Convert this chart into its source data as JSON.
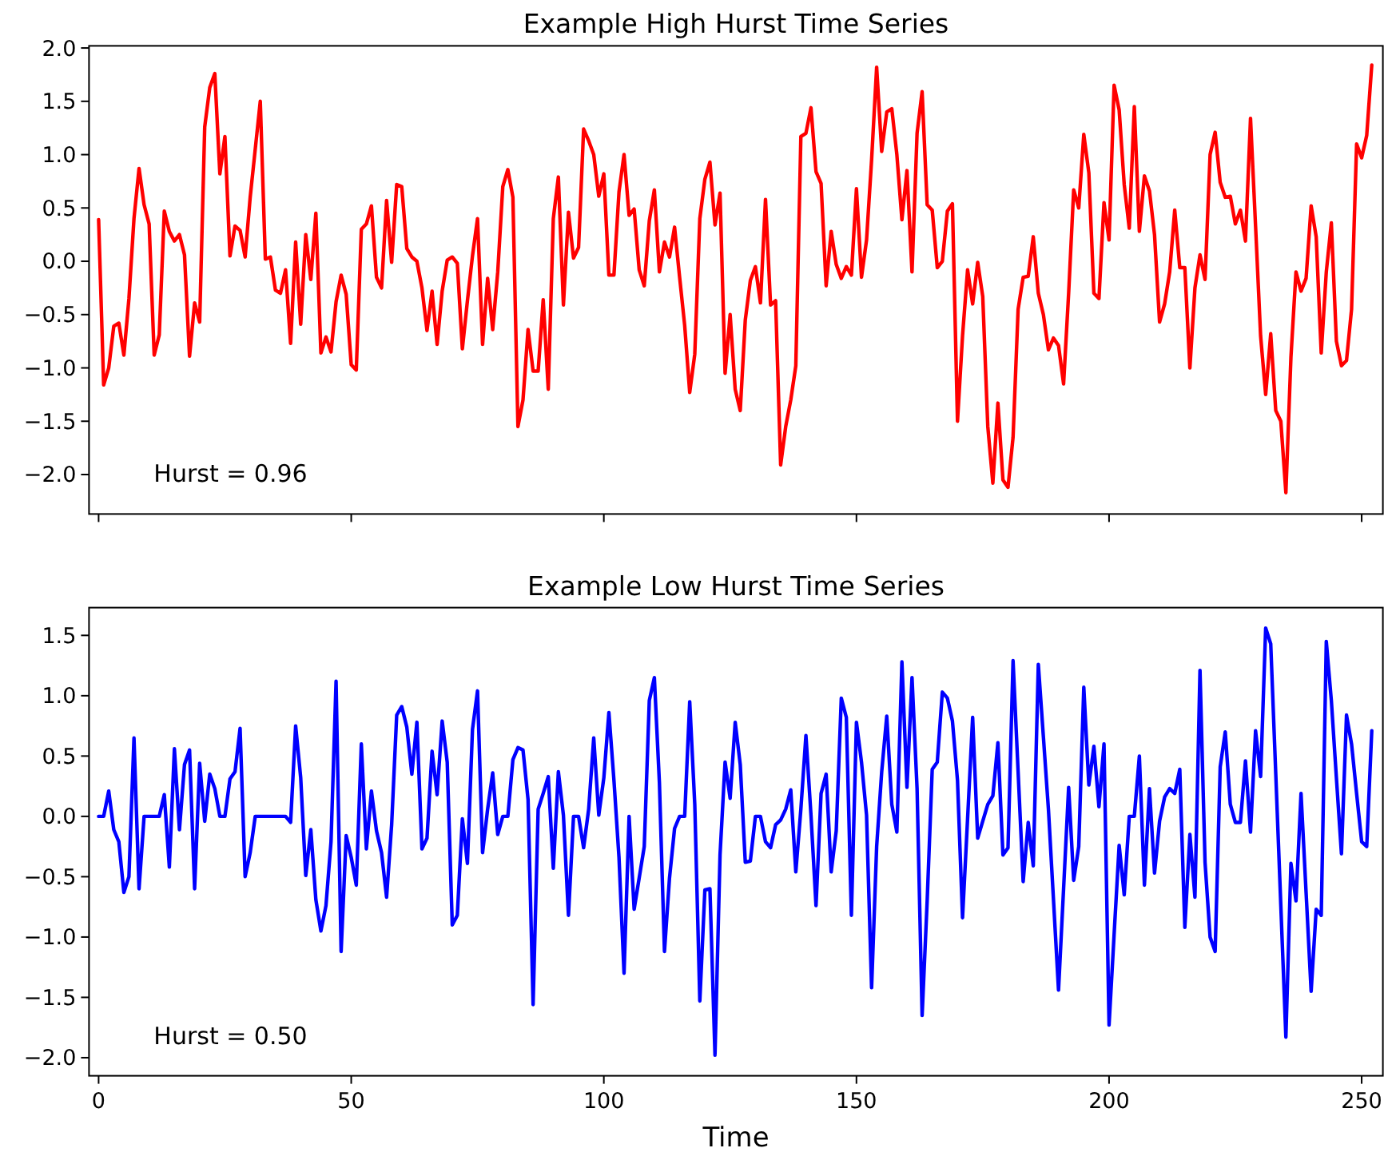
{
  "chart_data": [
    {
      "type": "line",
      "title": "Example High Hurst Time Series",
      "x": [
        0,
        1,
        2,
        3,
        4,
        5,
        6,
        7,
        8,
        9,
        10,
        11,
        12,
        13,
        14,
        15,
        16,
        17,
        18,
        19,
        20,
        21,
        22,
        23,
        24,
        25,
        26,
        27,
        28,
        29,
        30,
        31,
        32,
        33,
        34,
        35,
        36,
        37,
        38,
        39,
        40,
        41,
        42,
        43,
        44,
        45,
        46,
        47,
        48,
        49,
        50,
        51,
        52,
        53,
        54,
        55,
        56,
        57,
        58,
        59,
        60,
        61,
        62,
        63,
        64,
        65,
        66,
        67,
        68,
        69,
        70,
        71,
        72,
        73,
        74,
        75,
        76,
        77,
        78,
        79,
        80,
        81,
        82,
        83,
        84,
        85,
        86,
        87,
        88,
        89,
        90,
        91,
        92,
        93,
        94,
        95,
        96,
        97,
        98,
        99,
        100,
        101,
        102,
        103,
        104,
        105,
        106,
        107,
        108,
        109,
        110,
        111,
        112,
        113,
        114,
        115,
        116,
        117,
        118,
        119,
        120,
        121,
        122,
        123,
        124,
        125,
        126,
        127,
        128,
        129,
        130,
        131,
        132,
        133,
        134,
        135,
        136,
        137,
        138,
        139,
        140,
        141,
        142,
        143,
        144,
        145,
        146,
        147,
        148,
        149,
        150,
        151,
        152,
        153,
        154,
        155,
        156,
        157,
        158,
        159,
        160,
        161,
        162,
        163,
        164,
        165,
        166,
        167,
        168,
        169,
        170,
        171,
        172,
        173,
        174,
        175,
        176,
        177,
        178,
        179,
        180,
        181,
        182,
        183,
        184,
        185,
        186,
        187,
        188,
        189,
        190,
        191,
        192,
        193,
        194,
        195,
        196,
        197,
        198,
        199,
        200,
        201,
        202,
        203,
        204,
        205,
        206,
        207,
        208,
        209,
        210,
        211,
        212,
        213,
        214,
        215,
        216,
        217,
        218,
        219,
        220,
        221,
        222,
        223,
        224,
        225,
        226,
        227,
        228,
        229,
        230,
        231,
        232,
        233,
        234,
        235,
        236,
        237,
        238,
        239,
        240,
        241,
        242,
        243,
        244,
        245,
        246,
        247,
        248,
        249,
        250,
        251,
        252
      ],
      "series": [
        {
          "color": "#ff0000",
          "values": [
            0.39,
            -1.16,
            -1.0,
            -0.61,
            -0.58,
            -0.88,
            -0.35,
            0.4,
            0.87,
            0.53,
            0.35,
            -0.88,
            -0.69,
            0.47,
            0.28,
            0.19,
            0.25,
            0.06,
            -0.89,
            -0.39,
            -0.57,
            1.26,
            1.63,
            1.76,
            0.82,
            1.17,
            0.05,
            0.33,
            0.29,
            0.04,
            0.6,
            1.05,
            1.5,
            0.02,
            0.04,
            -0.27,
            -0.3,
            -0.08,
            -0.77,
            0.18,
            -0.59,
            0.25,
            -0.17,
            0.45,
            -0.86,
            -0.71,
            -0.85,
            -0.38,
            -0.13,
            -0.31,
            -0.97,
            -1.02,
            0.3,
            0.35,
            0.52,
            -0.15,
            -0.25,
            0.57,
            -0.01,
            0.72,
            0.7,
            0.12,
            0.04,
            0.0,
            -0.25,
            -0.65,
            -0.28,
            -0.78,
            -0.28,
            0.01,
            0.04,
            -0.02,
            -0.82,
            -0.37,
            0.05,
            0.4,
            -0.78,
            -0.16,
            -0.64,
            -0.1,
            0.7,
            0.86,
            0.6,
            -1.55,
            -1.3,
            -0.64,
            -1.03,
            -1.03,
            -0.36,
            -1.2,
            0.4,
            0.79,
            -0.41,
            0.46,
            0.03,
            0.13,
            1.24,
            1.13,
            1.0,
            0.61,
            0.82,
            -0.13,
            -0.13,
            0.65,
            1.0,
            0.43,
            0.49,
            -0.08,
            -0.23,
            0.38,
            0.67,
            -0.1,
            0.18,
            0.04,
            0.32,
            -0.15,
            -0.6,
            -1.23,
            -0.87,
            0.4,
            0.77,
            0.93,
            0.34,
            0.64,
            -1.05,
            -0.5,
            -1.2,
            -1.4,
            -0.55,
            -0.18,
            -0.05,
            -0.39,
            0.58,
            -0.41,
            -0.37,
            -1.91,
            -1.55,
            -1.3,
            -0.98,
            1.17,
            1.2,
            1.44,
            0.84,
            0.73,
            -0.23,
            0.28,
            -0.03,
            -0.16,
            -0.05,
            -0.13,
            0.68,
            -0.15,
            0.2,
            0.95,
            1.82,
            1.03,
            1.4,
            1.43,
            1.0,
            0.39,
            0.85,
            -0.1,
            1.2,
            1.59,
            0.53,
            0.48,
            -0.06,
            0.0,
            0.47,
            0.54,
            -1.5,
            -0.7,
            -0.08,
            -0.4,
            -0.01,
            -0.33,
            -1.55,
            -2.08,
            -1.33,
            -2.05,
            -2.12,
            -1.65,
            -0.45,
            -0.15,
            -0.14,
            0.23,
            -0.3,
            -0.5,
            -0.83,
            -0.72,
            -0.79,
            -1.15,
            -0.3,
            0.67,
            0.5,
            1.19,
            0.83,
            -0.3,
            -0.35,
            0.55,
            0.2,
            1.65,
            1.42,
            0.72,
            0.31,
            1.45,
            0.28,
            0.8,
            0.66,
            0.25,
            -0.57,
            -0.4,
            -0.1,
            0.48,
            -0.06,
            -0.06,
            -1.0,
            -0.25,
            0.06,
            -0.17,
            1.0,
            1.21,
            0.74,
            0.6,
            0.61,
            0.35,
            0.48,
            0.19,
            1.34,
            0.33,
            -0.7,
            -1.25,
            -0.68,
            -1.4,
            -1.5,
            -2.17,
            -0.9,
            -0.1,
            -0.28,
            -0.16,
            0.52,
            0.23,
            -0.86,
            -0.1,
            0.36,
            -0.75,
            -0.98,
            -0.93,
            -0.45,
            1.1,
            0.97,
            1.18,
            1.84
          ]
        }
      ],
      "xlim": [
        -1.9,
        254.2
      ],
      "xticks": [
        0,
        50,
        100,
        150,
        200,
        250
      ],
      "ylim": [
        -2.37,
        2.02
      ],
      "yticks": [
        {
          "value": -2.0,
          "label": "−2.0"
        },
        {
          "value": -1.5,
          "label": "−1.5"
        },
        {
          "value": -1.0,
          "label": "−1.0"
        },
        {
          "value": -0.5,
          "label": "−0.5"
        },
        {
          "value": 0,
          "label": "0.0"
        },
        {
          "value": 0.5,
          "label": "0.5"
        },
        {
          "value": 1.0,
          "label": "1.0"
        },
        {
          "value": 1.5,
          "label": "1.5"
        },
        {
          "value": 2.0,
          "label": "2.0"
        }
      ],
      "tick_labels": "y",
      "annotations": [
        "Hurst = 0.96"
      ]
    },
    {
      "type": "line",
      "title": "Example Low Hurst Time Series",
      "xlabel": "Time",
      "x": [
        0,
        1,
        2,
        3,
        4,
        5,
        6,
        7,
        8,
        9,
        10,
        11,
        12,
        13,
        14,
        15,
        16,
        17,
        18,
        19,
        20,
        21,
        22,
        23,
        24,
        25,
        26,
        27,
        28,
        29,
        30,
        31,
        32,
        33,
        34,
        35,
        36,
        37,
        38,
        39,
        40,
        41,
        42,
        43,
        44,
        45,
        46,
        47,
        48,
        49,
        50,
        51,
        52,
        53,
        54,
        55,
        56,
        57,
        58,
        59,
        60,
        61,
        62,
        63,
        64,
        65,
        66,
        67,
        68,
        69,
        70,
        71,
        72,
        73,
        74,
        75,
        76,
        77,
        78,
        79,
        80,
        81,
        82,
        83,
        84,
        85,
        86,
        87,
        88,
        89,
        90,
        91,
        92,
        93,
        94,
        95,
        96,
        97,
        98,
        99,
        100,
        101,
        102,
        103,
        104,
        105,
        106,
        107,
        108,
        109,
        110,
        111,
        112,
        113,
        114,
        115,
        116,
        117,
        118,
        119,
        120,
        121,
        122,
        123,
        124,
        125,
        126,
        127,
        128,
        129,
        130,
        131,
        132,
        133,
        134,
        135,
        136,
        137,
        138,
        139,
        140,
        141,
        142,
        143,
        144,
        145,
        146,
        147,
        148,
        149,
        150,
        151,
        152,
        153,
        154,
        155,
        156,
        157,
        158,
        159,
        160,
        161,
        162,
        163,
        164,
        165,
        166,
        167,
        168,
        169,
        170,
        171,
        172,
        173,
        174,
        175,
        176,
        177,
        178,
        179,
        180,
        181,
        182,
        183,
        184,
        185,
        186,
        187,
        188,
        189,
        190,
        191,
        192,
        193,
        194,
        195,
        196,
        197,
        198,
        199,
        200,
        201,
        202,
        203,
        204,
        205,
        206,
        207,
        208,
        209,
        210,
        211,
        212,
        213,
        214,
        215,
        216,
        217,
        218,
        219,
        220,
        221,
        222,
        223,
        224,
        225,
        226,
        227,
        228,
        229,
        230,
        231,
        232,
        233,
        234,
        235,
        236,
        237,
        238,
        239,
        240,
        241,
        242,
        243,
        244,
        245,
        246,
        247,
        248,
        249,
        250,
        251,
        252
      ],
      "series": [
        {
          "color": "#0000ff",
          "values": [
            0,
            0,
            0.21,
            -0.11,
            -0.21,
            -0.63,
            -0.5,
            0.65,
            -0.6,
            0,
            0,
            0,
            0,
            0.18,
            -0.42,
            0.56,
            -0.11,
            0.43,
            0.55,
            -0.6,
            0.44,
            -0.04,
            0.35,
            0.23,
            0,
            0,
            0.31,
            0.37,
            0.73,
            -0.5,
            -0.3,
            0,
            0,
            0,
            0,
            0,
            0,
            0,
            -0.05,
            0.75,
            0.32,
            -0.49,
            -0.11,
            -0.69,
            -0.95,
            -0.74,
            -0.21,
            1.12,
            -1.12,
            -0.16,
            -0.34,
            -0.57,
            0.6,
            -0.27,
            0.21,
            -0.12,
            -0.3,
            -0.67,
            -0.07,
            0.84,
            0.91,
            0.74,
            0.35,
            0.78,
            -0.27,
            -0.18,
            0.54,
            0.18,
            0.79,
            0.45,
            -0.9,
            -0.82,
            -0.02,
            -0.39,
            0.72,
            1.04,
            -0.3,
            0.06,
            0.36,
            -0.15,
            0,
            0,
            0.47,
            0.57,
            0.55,
            0.14,
            -1.56,
            0.06,
            0.19,
            0.33,
            -0.43,
            0.37,
            0.01,
            -0.82,
            0,
            0,
            -0.26,
            0.06,
            0.65,
            0.01,
            0.32,
            0.86,
            0.3,
            -0.34,
            -1.3,
            0,
            -0.77,
            -0.51,
            -0.25,
            0.96,
            1.15,
            0.28,
            -1.12,
            -0.51,
            -0.1,
            0,
            0,
            0.95,
            0.1,
            -1.53,
            -0.61,
            -0.6,
            -1.98,
            -0.32,
            0.45,
            0.15,
            0.78,
            0.43,
            -0.38,
            -0.37,
            0,
            0,
            -0.21,
            -0.26,
            -0.07,
            -0.03,
            0.06,
            0.22,
            -0.46,
            0.06,
            0.67,
            0.01,
            -0.74,
            0.19,
            0.35,
            -0.46,
            -0.12,
            0.98,
            0.82,
            -0.82,
            0.78,
            0.45,
            0.01,
            -1.42,
            -0.25,
            0.37,
            0.83,
            0.1,
            -0.13,
            1.28,
            0.24,
            1.15,
            0.23,
            -1.65,
            -0.7,
            0.39,
            0.45,
            1.03,
            0.98,
            0.79,
            0.3,
            -0.84,
            -0.02,
            0.82,
            -0.18,
            -0.04,
            0.1,
            0.17,
            0.61,
            -0.32,
            -0.26,
            1.29,
            0.37,
            -0.54,
            -0.05,
            -0.41,
            1.26,
            0.66,
            0.06,
            -0.69,
            -1.44,
            -0.6,
            0.24,
            -0.53,
            -0.25,
            1.07,
            0.26,
            0.58,
            0.08,
            0.6,
            -1.73,
            -0.98,
            -0.24,
            -0.65,
            0,
            0,
            0.5,
            -0.57,
            0.23,
            -0.47,
            -0.04,
            0.16,
            0.23,
            0.19,
            0.39,
            -0.92,
            -0.15,
            -0.67,
            1.21,
            -0.38,
            -1.0,
            -1.12,
            0.41,
            0.7,
            0.1,
            -0.05,
            -0.05,
            0.46,
            -0.13,
            0.71,
            0.33,
            1.56,
            1.43,
            0.35,
            -0.74,
            -1.83,
            -0.39,
            -0.7,
            0.19,
            -0.63,
            -1.45,
            -0.77,
            -0.82,
            1.45,
            0.96,
            0.32,
            -0.31,
            0.84,
            0.6,
            0.19,
            -0.21,
            -0.25,
            0.71
          ]
        }
      ],
      "xlim": [
        -1.9,
        254.2
      ],
      "xticks": [
        0,
        50,
        100,
        150,
        200,
        250
      ],
      "ylim": [
        -2.15,
        1.73
      ],
      "yticks": [
        {
          "value": -2.0,
          "label": "−2.0"
        },
        {
          "value": -1.5,
          "label": "−1.5"
        },
        {
          "value": -1.0,
          "label": "−1.0"
        },
        {
          "value": -0.5,
          "label": "−0.5"
        },
        {
          "value": 0,
          "label": "0.0"
        },
        {
          "value": 0.5,
          "label": "0.5"
        },
        {
          "value": 1.0,
          "label": "1.0"
        },
        {
          "value": 1.5,
          "label": "1.5"
        }
      ],
      "annotations": [
        "Hurst = 0.50"
      ]
    }
  ]
}
